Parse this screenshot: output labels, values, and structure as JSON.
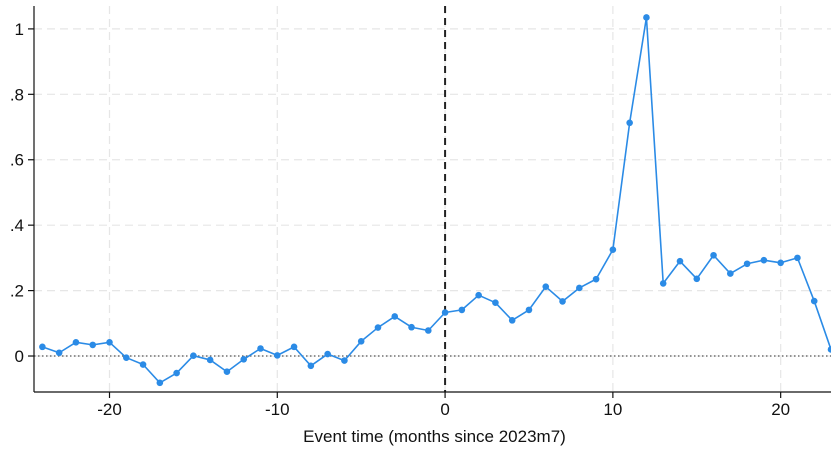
{
  "chart_data": {
    "type": "line",
    "title": "",
    "xlabel": "Event time (months since 2023m7)",
    "ylabel": "",
    "xlim": [
      -24.5,
      23
    ],
    "ylim": [
      -0.11,
      1.07
    ],
    "x_ticks": [
      -20,
      -10,
      0,
      10,
      20
    ],
    "x_tick_labels": [
      "-20",
      "-10",
      "0",
      "10",
      "20"
    ],
    "y_ticks": [
      0,
      0.2,
      0.4,
      0.6,
      0.8,
      1
    ],
    "y_tick_labels": [
      "0",
      ".2",
      ".4",
      ".6",
      ".8",
      "1"
    ],
    "grid": true,
    "reference_lines": {
      "vertical_x": 0,
      "vertical_style": "dashed",
      "horizontal_y": 0,
      "horizontal_style": "dotted"
    },
    "series": [
      {
        "color": "#2b8be6",
        "x": [
          -24,
          -23,
          -22,
          -21,
          -20,
          -19,
          -18,
          -17,
          -16,
          -15,
          -14,
          -13,
          -12,
          -11,
          -10,
          -9,
          -8,
          -7,
          -6,
          -5,
          -4,
          -3,
          -2,
          -1,
          0,
          1,
          2,
          3,
          4,
          5,
          6,
          7,
          8,
          9,
          10,
          11,
          12,
          13,
          14,
          15,
          16,
          17,
          18,
          19,
          20,
          21,
          22,
          23
        ],
        "values": [
          0.028,
          0.01,
          0.042,
          0.034,
          0.042,
          -0.005,
          -0.026,
          -0.082,
          -0.052,
          0.001,
          -0.012,
          -0.048,
          -0.01,
          0.023,
          0.002,
          0.028,
          -0.03,
          0.006,
          -0.014,
          0.045,
          0.087,
          0.121,
          0.088,
          0.078,
          0.133,
          0.141,
          0.186,
          0.163,
          0.109,
          0.141,
          0.212,
          0.167,
          0.208,
          0.235,
          0.325,
          0.713,
          1.035,
          0.222,
          0.29,
          0.236,
          0.308,
          0.252,
          0.282,
          0.293,
          0.285,
          0.3,
          0.168,
          0.02
        ]
      }
    ]
  }
}
